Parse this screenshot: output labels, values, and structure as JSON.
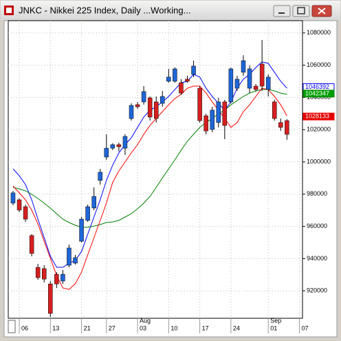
{
  "chart_data": {
    "type": "candlestick",
    "title": "JNKC - Nikkei 225 Index, Daily ...Working...",
    "open": [
      974400,
      976500,
      972200,
      954300,
      934600,
      933800,
      924300,
      930300,
      926100,
      935900,
      937200,
      950800,
      963700,
      971400,
      988500,
      1003000,
      1008500,
      1010700,
      1008500,
      1026900,
      1035500,
      1037200,
      1039700,
      1037200,
      1036300,
      1050000,
      1050000,
      1049100,
      1051300,
      1054300,
      1045700,
      1028600,
      1020100,
      1024400,
      1037200,
      1037200,
      1045700,
      1055600,
      1045700,
      1047000,
      1060700,
      1044900,
      1037200,
      1024400,
      1025600
    ],
    "high": [
      982000,
      977300,
      973500,
      955100,
      936700,
      935900,
      926100,
      931600,
      932900,
      948700,
      942300,
      965800,
      973500,
      984200,
      995700,
      1017100,
      1011500,
      1012000,
      1017100,
      1036300,
      1037200,
      1047000,
      1040600,
      1040600,
      1044000,
      1057700,
      1058600,
      1051300,
      1053400,
      1062800,
      1047000,
      1029900,
      1034200,
      1039700,
      1038500,
      1058600,
      1053400,
      1066200,
      1059800,
      1048300,
      1075600,
      1054300,
      1038500,
      1026900,
      1026500
    ],
    "low": [
      973100,
      968800,
      962800,
      941400,
      926900,
      925200,
      903800,
      921800,
      924300,
      934600,
      936300,
      950000,
      962800,
      970100,
      985900,
      1001300,
      1007300,
      1006400,
      1004300,
      1025600,
      1032900,
      1035500,
      1025600,
      1024400,
      1034200,
      1049100,
      1049100,
      1041500,
      1049100,
      1052600,
      1024400,
      1017100,
      1018400,
      1021400,
      1014100,
      1036300,
      1044000,
      1053400,
      1042700,
      1043600,
      1044000,
      1040600,
      1025600,
      1019200,
      1013700
    ],
    "close": [
      980800,
      970100,
      964500,
      943200,
      928200,
      927300,
      906000,
      924300,
      930300,
      946600,
      940600,
      964500,
      972200,
      978600,
      993600,
      1008500,
      1010700,
      1009400,
      1015800,
      1035000,
      1034200,
      1043600,
      1027800,
      1026900,
      1040600,
      1052600,
      1057700,
      1042700,
      1050000,
      1059400,
      1025600,
      1019200,
      1032100,
      1037200,
      1022600,
      1057700,
      1051300,
      1062800,
      1057700,
      1044900,
      1047000,
      1052600,
      1026900,
      1021400,
      1017100
    ],
    "up_color": "#1f66d6",
    "down_color": "#d61f1f",
    "series": [
      {
        "name": "MA fast",
        "color": "#0000ff",
        "last_value": 1046392,
        "tag_fill": "#ffffff",
        "tag_text": "#0000ff",
        "values": [
          995700,
          991400,
          985900,
          976500,
          964500,
          953000,
          941500,
          934600,
          934600,
          937200,
          938900,
          944400,
          955100,
          965800,
          976500,
          988500,
          997900,
          1005600,
          1010700,
          1015000,
          1021400,
          1027800,
          1032100,
          1034200,
          1037200,
          1040600,
          1044900,
          1049100,
          1050000,
          1054300,
          1052600,
          1045700,
          1040600,
          1036300,
          1032100,
          1037200,
          1045700,
          1051300,
          1054300,
          1058500,
          1062000,
          1061100,
          1055600,
          1050000,
          1045700
        ]
      },
      {
        "name": "MA slow",
        "color": "#008000",
        "last_value": 1042347,
        "tag_fill": "#00a000",
        "tag_text": "#ffffff",
        "values": [
          984200,
          983300,
          982000,
          979900,
          977300,
          974400,
          971300,
          967900,
          964500,
          962400,
          960700,
          959400,
          959400,
          960200,
          961100,
          962400,
          962800,
          963700,
          965800,
          967900,
          970900,
          974400,
          978600,
          984200,
          990100,
          995700,
          1001300,
          1007200,
          1012800,
          1017100,
          1021400,
          1024400,
          1026900,
          1029900,
          1032100,
          1035400,
          1038000,
          1040600,
          1042700,
          1044000,
          1044900,
          1044900,
          1044000,
          1042700,
          1041900
        ]
      },
      {
        "name": "MA mid",
        "color": "#ff0000",
        "last_value": 1028133,
        "tag_fill": "#e00000",
        "tag_text": "#ffffff",
        "values": [
          985000,
          980800,
          976500,
          970100,
          961500,
          950900,
          940200,
          929500,
          921800,
          920900,
          924400,
          931600,
          942300,
          953000,
          963700,
          974400,
          987200,
          994400,
          1000000,
          1005600,
          1010700,
          1017100,
          1022600,
          1026900,
          1031200,
          1035400,
          1039300,
          1041900,
          1045700,
          1047000,
          1047000,
          1042700,
          1037200,
          1032100,
          1026900,
          1021400,
          1024400,
          1031200,
          1035400,
          1040600,
          1045700,
          1044900,
          1040600,
          1035400,
          1028600
        ]
      }
    ],
    "xlim": [
      -0.77,
      46.5
    ],
    "xticks": [
      {
        "value": 1,
        "label": "06"
      },
      {
        "value": 6,
        "label": "13"
      },
      {
        "value": 11,
        "label": "21"
      },
      {
        "value": 15,
        "label": "27"
      },
      {
        "value": 20,
        "label": "03"
      },
      {
        "value": 25,
        "label": "10"
      },
      {
        "value": 30,
        "label": "17"
      },
      {
        "value": 35,
        "label": "24"
      },
      {
        "value": 41,
        "label": "01"
      },
      {
        "value": 46,
        "label": "07"
      }
    ],
    "month_ticks": [
      {
        "value": 20,
        "label": "Aug"
      },
      {
        "value": 41,
        "label": "Sep"
      }
    ],
    "ylim": [
      903000,
      1087600
    ],
    "yticks": [
      920000,
      940000,
      960000,
      980000,
      1000000,
      1020000,
      1040000,
      1060000,
      1080000
    ],
    "grid": true
  }
}
